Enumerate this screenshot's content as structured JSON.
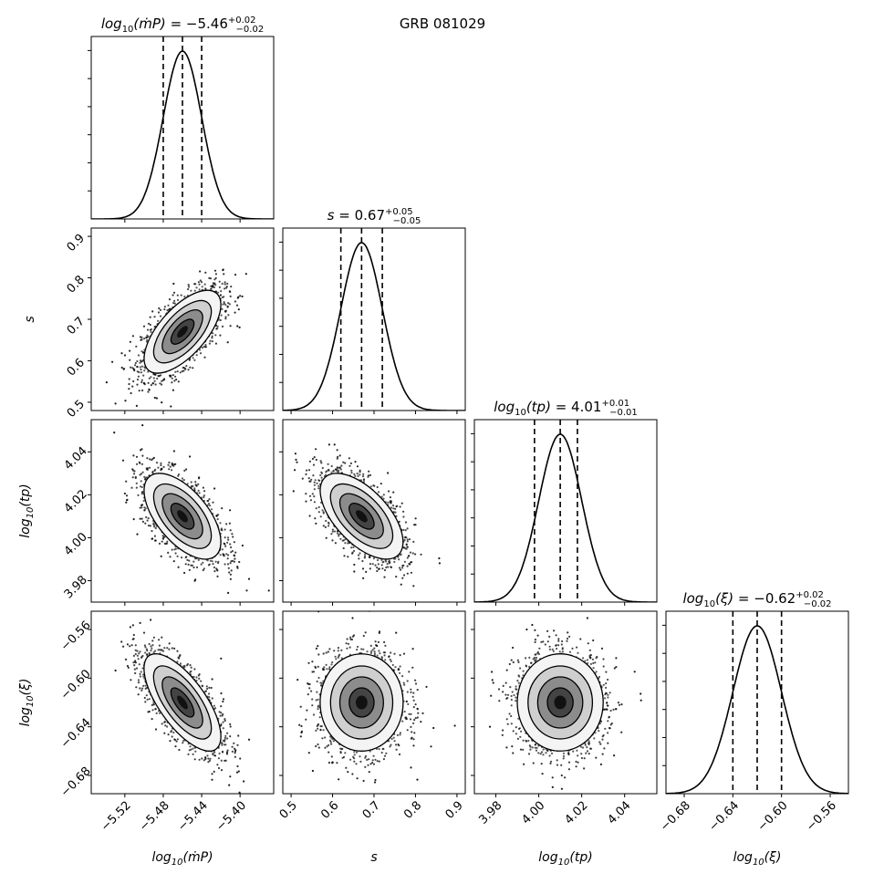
{
  "figure_title": "GRB 081029",
  "chart_data": {
    "type": "corner",
    "title": "GRB 081029",
    "parameters": [
      {
        "key": "mdot",
        "label": "log10(ṁP)",
        "axis_label_main": "log",
        "axis_label_sub": "10",
        "axis_label_arg": "(ṁP)",
        "median": -5.46,
        "plus": 0.02,
        "minus": 0.02,
        "q16": -5.48,
        "q84": -5.44,
        "sigma": 0.02,
        "title_lhs": "log10(ṁP) = ",
        "title_value": "−5.46",
        "title_plus": "+0.02",
        "title_minus": "−0.02",
        "range": [
          -5.555,
          -5.365
        ],
        "ticks": [
          -5.52,
          -5.48,
          -5.44,
          -5.4
        ],
        "tick_labels": [
          "−5.52",
          "−5.48",
          "−5.44",
          "−5.40"
        ]
      },
      {
        "key": "s",
        "label": "s",
        "axis_label_main": "s",
        "axis_label_sub": "",
        "axis_label_arg": "",
        "median": 0.67,
        "plus": 0.05,
        "minus": 0.05,
        "q16": 0.62,
        "q84": 0.72,
        "sigma": 0.05,
        "title_lhs": "s = ",
        "title_value": "0.67",
        "title_plus": "+0.05",
        "title_minus": "−0.05",
        "range": [
          0.48,
          0.92
        ],
        "ticks": [
          0.5,
          0.6,
          0.7,
          0.8,
          0.9
        ],
        "tick_labels": [
          "0.5",
          "0.6",
          "0.7",
          "0.8",
          "0.9"
        ]
      },
      {
        "key": "tp",
        "label": "log10(tp)",
        "axis_label_main": "log",
        "axis_label_sub": "10",
        "axis_label_arg": "(tp)",
        "median": 4.01,
        "plus": 0.01,
        "minus": 0.01,
        "q16": 3.998,
        "q84": 4.018,
        "sigma": 0.01,
        "title_lhs": "log10(tp) = ",
        "title_value": "4.01",
        "title_plus": "+0.01",
        "title_minus": "−0.01",
        "range": [
          3.97,
          4.055
        ],
        "ticks": [
          3.98,
          4.0,
          4.02,
          4.04
        ],
        "tick_labels": [
          "3.98",
          "4.00",
          "4.02",
          "4.04"
        ]
      },
      {
        "key": "xi",
        "label": "log10(ξ)",
        "axis_label_main": "log",
        "axis_label_sub": "10",
        "axis_label_arg": "(ξ)",
        "median": -0.62,
        "plus": 0.02,
        "minus": 0.02,
        "q16": -0.64,
        "q84": -0.6,
        "sigma": 0.02,
        "title_lhs": "log10(ξ) = ",
        "title_value": "−0.62",
        "title_plus": "+0.02",
        "title_minus": "−0.02",
        "range": [
          -0.695,
          -0.545
        ],
        "ticks": [
          -0.68,
          -0.64,
          -0.6,
          -0.56
        ],
        "tick_labels": [
          "−0.68",
          "−0.64",
          "−0.60",
          "−0.56"
        ]
      }
    ],
    "correlations": {
      "1,0": 0.65,
      "2,0": -0.6,
      "2,1": -0.6,
      "3,0": -0.7,
      "3,1": 0.0,
      "3,2": 0.0
    },
    "quantiles": [
      0.16,
      0.5,
      0.84
    ],
    "colors": {
      "line": "#000000",
      "contour_fill_light": "#ffffff",
      "contour_fill_dark": "#000000"
    }
  }
}
